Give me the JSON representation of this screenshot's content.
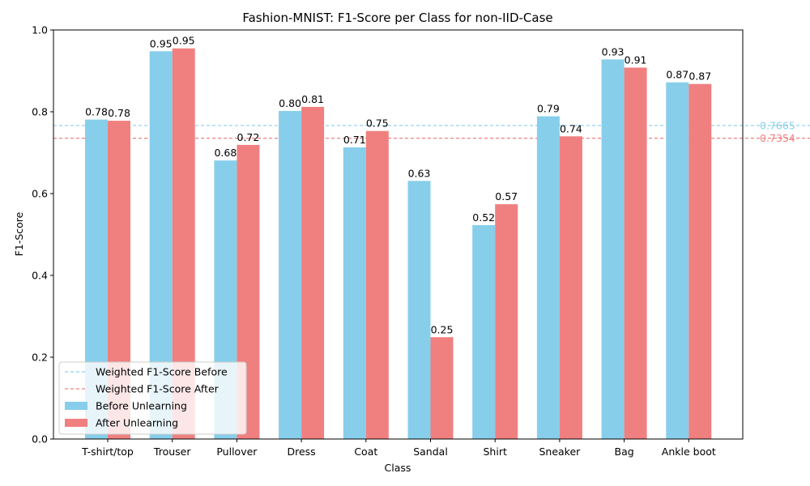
{
  "chart_data": {
    "type": "bar",
    "title": "Fashion-MNIST: F1-Score per Class for non-IID-Case",
    "xlabel": "Class",
    "ylabel": "F1-Score",
    "ylim": [
      0,
      1.0
    ],
    "yticks": [
      "0.0",
      "0.2",
      "0.4",
      "0.6",
      "0.8",
      "1.0"
    ],
    "categories": [
      "T-shirt/top",
      "Trouser",
      "Pullover",
      "Dress",
      "Coat",
      "Sandal",
      "Shirt",
      "Sneaker",
      "Bag",
      "Ankle boot"
    ],
    "series": [
      {
        "name": "Before Unlearning",
        "color": "#87CEEB",
        "values": [
          0.781,
          0.948,
          0.681,
          0.802,
          0.713,
          0.631,
          0.523,
          0.789,
          0.928,
          0.872
        ],
        "labels": [
          "0.78",
          "0.95",
          "0.68",
          "0.80",
          "0.71",
          "0.63",
          "0.52",
          "0.79",
          "0.93",
          "0.87"
        ]
      },
      {
        "name": "After Unlearning",
        "color": "#F08080",
        "values": [
          0.778,
          0.955,
          0.719,
          0.812,
          0.753,
          0.249,
          0.574,
          0.74,
          0.908,
          0.868
        ],
        "labels": [
          "0.78",
          "0.95",
          "0.72",
          "0.81",
          "0.75",
          "0.25",
          "0.57",
          "0.74",
          "0.91",
          "0.87"
        ]
      }
    ],
    "reference_lines": [
      {
        "name": "Weighted F1-Score Before",
        "value": 0.7665,
        "label": "0.7665",
        "color": "#87CEEB",
        "style": "dashed"
      },
      {
        "name": "Weighted F1-Score After",
        "value": 0.7354,
        "label": "0.7354",
        "color": "#F08080",
        "style": "dashed"
      }
    ],
    "legend_position": "lower-left",
    "grid": false
  }
}
